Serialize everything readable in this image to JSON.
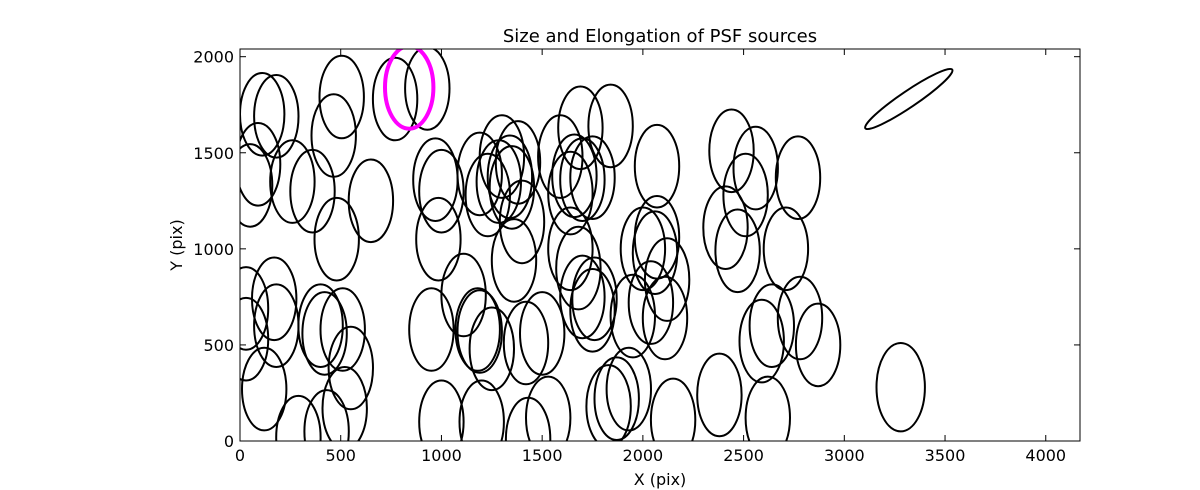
{
  "chart_data": {
    "type": "scatter",
    "title": "Size and Elongation of PSF sources",
    "xlabel": "X (pix)",
    "ylabel": "Y (pix)",
    "xlim": [
      0,
      4170
    ],
    "ylim": [
      0,
      2040
    ],
    "xticks": [
      0,
      500,
      1000,
      1500,
      2000,
      2500,
      3000,
      3500,
      4000
    ],
    "yticks": [
      0,
      500,
      1000,
      1500,
      2000
    ],
    "grid": false,
    "colors": {
      "source": "#000000",
      "highlight": "#ff00ff"
    },
    "ellipse_fields": [
      "x",
      "y",
      "rx",
      "ry",
      "angle_deg"
    ],
    "series": [
      {
        "marker": "ellipse",
        "color": "#000000",
        "ellipses": [
          [
            110,
            1700,
            110,
            215,
            0
          ],
          [
            180,
            1690,
            110,
            215,
            0
          ],
          [
            505,
            1790,
            110,
            215,
            0
          ],
          [
            465,
            1590,
            110,
            215,
            0
          ],
          [
            770,
            1780,
            110,
            215,
            0
          ],
          [
            930,
            1835,
            110,
            215,
            0
          ],
          [
            90,
            1440,
            110,
            215,
            0
          ],
          [
            50,
            1330,
            110,
            215,
            0
          ],
          [
            260,
            1350,
            110,
            215,
            0
          ],
          [
            360,
            1300,
            110,
            215,
            0
          ],
          [
            650,
            1250,
            110,
            215,
            0
          ],
          [
            480,
            1050,
            110,
            215,
            0
          ],
          [
            970,
            1360,
            110,
            215,
            0
          ],
          [
            1000,
            1300,
            110,
            215,
            0
          ],
          [
            985,
            1050,
            110,
            215,
            0
          ],
          [
            1190,
            1390,
            110,
            215,
            0
          ],
          [
            1285,
            1350,
            110,
            215,
            0
          ],
          [
            1300,
            1480,
            110,
            215,
            0
          ],
          [
            1340,
            1375,
            110,
            215,
            0
          ],
          [
            1350,
            1320,
            110,
            215,
            0
          ],
          [
            1230,
            1280,
            110,
            215,
            0
          ],
          [
            1380,
            1450,
            110,
            215,
            0
          ],
          [
            1400,
            1140,
            110,
            215,
            0
          ],
          [
            1360,
            940,
            110,
            215,
            0
          ],
          [
            1590,
            1480,
            110,
            215,
            0
          ],
          [
            1660,
            1380,
            110,
            215,
            0
          ],
          [
            1700,
            1360,
            110,
            215,
            0
          ],
          [
            1750,
            1370,
            110,
            215,
            0
          ],
          [
            1640,
            1290,
            110,
            215,
            0
          ],
          [
            1840,
            1640,
            110,
            215,
            0
          ],
          [
            2070,
            1430,
            110,
            215,
            0
          ],
          [
            1690,
            1630,
            110,
            215,
            0
          ],
          [
            1640,
            1000,
            110,
            215,
            0
          ],
          [
            1680,
            900,
            110,
            215,
            0
          ],
          [
            1700,
            750,
            110,
            215,
            0
          ],
          [
            1760,
            740,
            110,
            215,
            0
          ],
          [
            1750,
            680,
            110,
            215,
            0
          ],
          [
            2000,
            1000,
            110,
            215,
            0
          ],
          [
            2070,
            1060,
            110,
            215,
            0
          ],
          [
            2060,
            980,
            110,
            215,
            0
          ],
          [
            2120,
            840,
            110,
            215,
            0
          ],
          [
            2040,
            720,
            110,
            215,
            0
          ],
          [
            2110,
            640,
            110,
            215,
            0
          ],
          [
            2440,
            1510,
            110,
            215,
            0
          ],
          [
            2560,
            1420,
            110,
            215,
            0
          ],
          [
            2510,
            1280,
            110,
            215,
            0
          ],
          [
            2770,
            1370,
            110,
            215,
            0
          ],
          [
            2410,
            1110,
            110,
            215,
            0
          ],
          [
            2470,
            990,
            110,
            215,
            0
          ],
          [
            2710,
            1000,
            110,
            215,
            0
          ],
          [
            2640,
            600,
            110,
            215,
            0
          ],
          [
            2590,
            520,
            110,
            215,
            0
          ],
          [
            2780,
            640,
            110,
            215,
            0
          ],
          [
            2870,
            500,
            110,
            215,
            0
          ],
          [
            2380,
            240,
            110,
            215,
            0
          ],
          [
            2620,
            120,
            110,
            215,
            0
          ],
          [
            2150,
            110,
            110,
            215,
            0
          ],
          [
            1930,
            270,
            110,
            215,
            0
          ],
          [
            1870,
            220,
            110,
            215,
            0
          ],
          [
            1830,
            180,
            110,
            215,
            0
          ],
          [
            1950,
            650,
            110,
            215,
            0
          ],
          [
            1500,
            560,
            110,
            215,
            0
          ],
          [
            1420,
            510,
            110,
            215,
            0
          ],
          [
            1190,
            570,
            110,
            215,
            0
          ],
          [
            1250,
            480,
            110,
            215,
            0
          ],
          [
            1180,
            580,
            110,
            215,
            0
          ],
          [
            1110,
            760,
            110,
            215,
            0
          ],
          [
            950,
            580,
            110,
            215,
            0
          ],
          [
            1000,
            100,
            110,
            215,
            0
          ],
          [
            1200,
            100,
            110,
            215,
            0
          ],
          [
            1530,
            120,
            110,
            215,
            0
          ],
          [
            1430,
            10,
            110,
            215,
            0
          ],
          [
            170,
            740,
            110,
            215,
            0
          ],
          [
            180,
            600,
            110,
            215,
            0
          ],
          [
            400,
            600,
            110,
            215,
            0
          ],
          [
            420,
            560,
            110,
            215,
            0
          ],
          [
            510,
            580,
            110,
            215,
            0
          ],
          [
            550,
            380,
            110,
            215,
            0
          ],
          [
            120,
            270,
            110,
            215,
            0
          ],
          [
            520,
            170,
            110,
            215,
            0
          ],
          [
            430,
            50,
            110,
            215,
            0
          ],
          [
            290,
            20,
            110,
            215,
            0
          ],
          [
            30,
            690,
            110,
            215,
            0
          ],
          [
            30,
            530,
            110,
            215,
            0
          ],
          [
            3280,
            280,
            120,
            230,
            0
          ],
          [
            3320,
            1780,
            260,
            42,
            -34
          ]
        ]
      },
      {
        "marker": "ellipse",
        "color": "#ff00ff",
        "ellipses": [
          [
            840,
            1840,
            120,
            215,
            0
          ]
        ]
      }
    ]
  }
}
